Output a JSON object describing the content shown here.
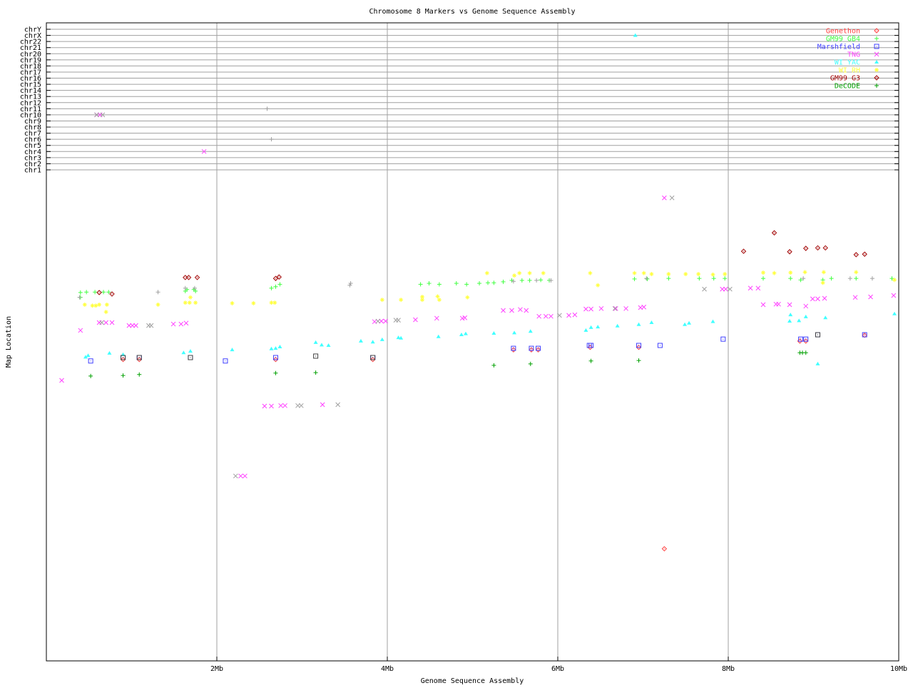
{
  "chart_data": {
    "type": "scatter",
    "title": "Chromosome 8 Markers vs Genome Sequence Assembly",
    "xlabel": "Genome Sequence Assembly",
    "ylabel": "Map Location",
    "xlim": [
      0,
      10
    ],
    "x_ticks": [
      {
        "v": 2,
        "label": "2Mb"
      },
      {
        "v": 4,
        "label": "4Mb"
      },
      {
        "v": 6,
        "label": "6Mb"
      },
      {
        "v": 8,
        "label": "8Mb"
      },
      {
        "v": 10,
        "label": "10Mb"
      }
    ],
    "ylim": [
      0,
      100
    ],
    "chr_ticks": [
      "chr1",
      "chr2",
      "chr3",
      "chr4",
      "chr5",
      "chr6",
      "chr7",
      "chr8",
      "chr9",
      "chr10",
      "chr11",
      "chr12",
      "chr13",
      "chr14",
      "chr15",
      "chr16",
      "chr17",
      "chr18",
      "chr19",
      "chr20",
      "chr21",
      "chr22",
      "chrX",
      "chrY"
    ],
    "grid": {
      "x": true,
      "chr_rows": true
    },
    "legend_placement": "top-right",
    "series": [
      {
        "name": "Genethon",
        "color": "#ff4040",
        "marker": "diamond",
        "points": [
          [
            0.9,
            62.1
          ],
          [
            1.09,
            62.1
          ],
          [
            2.69,
            62.1
          ],
          [
            3.83,
            62.1
          ],
          [
            5.48,
            64.1
          ],
          [
            5.69,
            64.1
          ],
          [
            5.77,
            64.1
          ],
          [
            6.38,
            64.6
          ],
          [
            6.95,
            64.6
          ],
          [
            8.84,
            65.9
          ],
          [
            8.91,
            65.9
          ],
          [
            9.6,
            67.1
          ],
          [
            7.25,
            23.1
          ]
        ]
      },
      {
        "name": "GM99 GB4",
        "color": "#40ff40",
        "marker": "plus",
        "points": [
          [
            0.4,
            75.9
          ],
          [
            0.4,
            74.9
          ],
          [
            0.47,
            76.0
          ],
          [
            0.57,
            76.0
          ],
          [
            0.67,
            76.0
          ],
          [
            0.73,
            76.0
          ],
          [
            1.65,
            76.5
          ],
          [
            1.73,
            76.5
          ],
          [
            1.63,
            76.2
          ],
          [
            1.75,
            76.2
          ],
          [
            2.64,
            76.8
          ],
          [
            2.69,
            77.1
          ],
          [
            2.74,
            77.6
          ],
          [
            4.39,
            77.6
          ],
          [
            4.49,
            77.8
          ],
          [
            4.61,
            77.6
          ],
          [
            4.81,
            77.8
          ],
          [
            4.93,
            77.6
          ],
          [
            5.08,
            77.8
          ],
          [
            5.18,
            77.9
          ],
          [
            5.25,
            77.9
          ],
          [
            5.36,
            78.1
          ],
          [
            5.46,
            78.4
          ],
          [
            5.58,
            78.4
          ],
          [
            5.67,
            78.4
          ],
          [
            5.8,
            78.5
          ],
          [
            5.9,
            78.4
          ],
          [
            6.9,
            78.7
          ],
          [
            7.05,
            78.7
          ],
          [
            7.3,
            78.8
          ],
          [
            7.66,
            78.8
          ],
          [
            7.83,
            78.8
          ],
          [
            7.96,
            78.8
          ],
          [
            8.41,
            78.8
          ],
          [
            8.73,
            78.8
          ],
          [
            8.85,
            78.5
          ],
          [
            9.11,
            78.5
          ],
          [
            9.21,
            78.8
          ],
          [
            9.5,
            78.8
          ],
          [
            9.92,
            78.8
          ]
        ]
      },
      {
        "name": "Marshfield",
        "color": "#4040ff",
        "marker": "box",
        "points": [
          [
            0.52,
            61.8
          ],
          [
            0.9,
            62.5
          ],
          [
            1.09,
            62.5
          ],
          [
            1.69,
            62.5
          ],
          [
            2.1,
            61.8
          ],
          [
            2.69,
            62.5
          ],
          [
            3.83,
            62.5
          ],
          [
            5.48,
            64.4
          ],
          [
            5.69,
            64.4
          ],
          [
            5.77,
            64.4
          ],
          [
            6.37,
            65.0
          ],
          [
            6.39,
            65.0
          ],
          [
            6.95,
            65.0
          ],
          [
            7.2,
            65.0
          ],
          [
            7.94,
            66.3
          ],
          [
            8.85,
            66.3
          ],
          [
            8.91,
            66.3
          ],
          [
            9.05,
            67.2
          ],
          [
            9.6,
            67.2
          ]
        ]
      },
      {
        "name": "TNG",
        "color": "#ff40ff",
        "marker": "x",
        "points": [
          [
            0.18,
            57.8
          ],
          [
            0.4,
            68.1
          ],
          [
            0.62,
            69.7
          ],
          [
            0.7,
            69.7
          ],
          [
            0.77,
            69.7
          ],
          [
            0.97,
            69.1
          ],
          [
            1.01,
            69.1
          ],
          [
            1.05,
            69.1
          ],
          [
            1.49,
            69.4
          ],
          [
            1.58,
            69.4
          ],
          [
            1.64,
            69.6
          ],
          [
            1.85,
            "chr4"
          ],
          [
            0.59,
            "chr10"
          ],
          [
            0.63,
            "chr10"
          ],
          [
            2.56,
            52.5
          ],
          [
            2.64,
            52.5
          ],
          [
            2.75,
            52.6
          ],
          [
            2.8,
            52.6
          ],
          [
            3.24,
            52.8
          ],
          [
            2.28,
            38.1
          ],
          [
            2.33,
            38.1
          ],
          [
            3.85,
            69.9
          ],
          [
            3.93,
            70.0
          ],
          [
            3.98,
            70.0
          ],
          [
            4.33,
            70.3
          ],
          [
            4.58,
            70.6
          ],
          [
            4.88,
            70.6
          ],
          [
            4.91,
            70.7
          ],
          [
            5.36,
            72.2
          ],
          [
            5.46,
            72.2
          ],
          [
            5.56,
            72.4
          ],
          [
            5.63,
            72.2
          ],
          [
            5.78,
            71.0
          ],
          [
            5.86,
            71.0
          ],
          [
            5.92,
            71.0
          ],
          [
            6.13,
            71.2
          ],
          [
            6.2,
            71.3
          ],
          [
            6.33,
            72.5
          ],
          [
            6.39,
            72.5
          ],
          [
            6.51,
            72.6
          ],
          [
            6.68,
            72.6
          ],
          [
            6.8,
            72.6
          ],
          [
            6.97,
            72.8
          ],
          [
            7.01,
            72.9
          ],
          [
            7.25,
            95.4
          ],
          [
            7.93,
            76.6
          ],
          [
            7.97,
            76.6
          ],
          [
            8.26,
            76.8
          ],
          [
            8.35,
            76.8
          ],
          [
            8.41,
            73.4
          ],
          [
            8.56,
            73.5
          ],
          [
            8.59,
            73.5
          ],
          [
            8.72,
            73.4
          ],
          [
            8.91,
            73.1
          ],
          [
            8.99,
            74.6
          ],
          [
            9.05,
            74.6
          ],
          [
            9.13,
            74.7
          ],
          [
            9.49,
            74.9
          ],
          [
            9.67,
            75.0
          ],
          [
            9.94,
            75.3
          ]
        ]
      },
      {
        "name": "WI YAC",
        "color": "#40ffff",
        "marker": "triangle",
        "points": [
          [
            0.46,
            62.6
          ],
          [
            0.49,
            62.9
          ],
          [
            0.74,
            63.4
          ],
          [
            0.9,
            63.1
          ],
          [
            1.61,
            63.5
          ],
          [
            1.69,
            63.8
          ],
          [
            2.18,
            64.1
          ],
          [
            2.64,
            64.3
          ],
          [
            2.69,
            64.4
          ],
          [
            2.74,
            64.7
          ],
          [
            3.16,
            65.6
          ],
          [
            3.23,
            65.1
          ],
          [
            3.31,
            65.0
          ],
          [
            3.69,
            65.9
          ],
          [
            3.83,
            65.7
          ],
          [
            3.94,
            66.2
          ],
          [
            4.13,
            66.6
          ],
          [
            4.16,
            66.5
          ],
          [
            4.6,
            66.8
          ],
          [
            4.87,
            67.2
          ],
          [
            4.92,
            67.4
          ],
          [
            5.25,
            67.5
          ],
          [
            5.49,
            67.6
          ],
          [
            5.68,
            67.9
          ],
          [
            6.33,
            68.1
          ],
          [
            6.39,
            68.7
          ],
          [
            6.47,
            68.8
          ],
          [
            6.7,
            69.0
          ],
          [
            6.95,
            69.3
          ],
          [
            7.1,
            69.7
          ],
          [
            7.49,
            69.3
          ],
          [
            7.54,
            69.6
          ],
          [
            7.82,
            69.9
          ],
          [
            6.91,
            "chrX"
          ],
          [
            8.72,
            70.0
          ],
          [
            8.73,
            71.3
          ],
          [
            8.83,
            70.1
          ],
          [
            8.91,
            70.9
          ],
          [
            9.05,
            61.2
          ],
          [
            9.14,
            70.7
          ],
          [
            9.95,
            71.5
          ]
        ]
      },
      {
        "name": "WI RH",
        "color": "#ffff40",
        "marker": "star",
        "points": [
          [
            0.45,
            73.4
          ],
          [
            0.54,
            73.2
          ],
          [
            0.58,
            73.2
          ],
          [
            0.62,
            73.4
          ],
          [
            0.71,
            73.4
          ],
          [
            0.7,
            71.9
          ],
          [
            1.31,
            73.4
          ],
          [
            1.63,
            73.8
          ],
          [
            1.68,
            73.8
          ],
          [
            1.75,
            73.8
          ],
          [
            1.69,
            74.9
          ],
          [
            2.18,
            73.7
          ],
          [
            2.43,
            73.7
          ],
          [
            2.64,
            73.8
          ],
          [
            2.68,
            73.8
          ],
          [
            3.94,
            74.4
          ],
          [
            4.16,
            74.4
          ],
          [
            4.41,
            75.0
          ],
          [
            4.41,
            74.4
          ],
          [
            4.61,
            74.4
          ],
          [
            4.59,
            75.1
          ],
          [
            4.94,
            74.9
          ],
          [
            5.17,
            79.9
          ],
          [
            5.49,
            79.4
          ],
          [
            5.55,
            79.9
          ],
          [
            5.67,
            79.9
          ],
          [
            5.83,
            79.9
          ],
          [
            6.38,
            79.9
          ],
          [
            6.47,
            77.4
          ],
          [
            6.9,
            79.9
          ],
          [
            7.01,
            79.9
          ],
          [
            7.1,
            79.7
          ],
          [
            7.3,
            79.7
          ],
          [
            7.5,
            79.7
          ],
          [
            7.65,
            79.7
          ],
          [
            7.82,
            79.6
          ],
          [
            7.96,
            79.7
          ],
          [
            8.41,
            80.0
          ],
          [
            8.54,
            79.9
          ],
          [
            8.73,
            80.0
          ],
          [
            8.9,
            80.1
          ],
          [
            9.12,
            80.1
          ],
          [
            9.5,
            80.1
          ],
          [
            9.95,
            78.5
          ],
          [
            9.11,
            77.9
          ]
        ]
      },
      {
        "name": "GM99 G3",
        "color": "#a00000",
        "marker": "diamond",
        "points": [
          [
            0.62,
            75.9
          ],
          [
            0.77,
            75.6
          ],
          [
            1.63,
            79.0
          ],
          [
            1.67,
            79.0
          ],
          [
            1.77,
            79.0
          ],
          [
            2.69,
            78.8
          ],
          [
            2.73,
            79.1
          ],
          [
            8.54,
            88.2
          ],
          [
            8.18,
            84.4
          ],
          [
            8.72,
            84.3
          ],
          [
            8.91,
            85.0
          ],
          [
            9.05,
            85.1
          ],
          [
            9.14,
            85.1
          ],
          [
            9.5,
            83.7
          ],
          [
            9.6,
            83.8
          ]
        ]
      },
      {
        "name": "DeCODE",
        "color": "#00a000",
        "marker": "plus",
        "points": [
          [
            0.52,
            58.7
          ],
          [
            0.9,
            58.8
          ],
          [
            1.09,
            59.0
          ],
          [
            2.69,
            59.3
          ],
          [
            3.16,
            59.4
          ],
          [
            5.25,
            60.9
          ],
          [
            5.68,
            61.2
          ],
          [
            6.39,
            61.8
          ],
          [
            6.95,
            61.9
          ],
          [
            8.84,
            63.5
          ],
          [
            8.87,
            63.5
          ],
          [
            8.91,
            63.5
          ]
        ]
      },
      {
        "color": "#a0a0a0",
        "marker": "plus",
        "points": [
          [
            2.59,
            "chr11"
          ],
          [
            2.64,
            "chr6"
          ],
          [
            0.39,
            74.9
          ],
          [
            1.31,
            76.0
          ],
          [
            1.63,
            76.8
          ],
          [
            1.74,
            76.8
          ],
          [
            3.56,
            77.4
          ],
          [
            3.57,
            77.8
          ],
          [
            5.48,
            78.2
          ],
          [
            5.75,
            78.4
          ],
          [
            5.92,
            78.4
          ],
          [
            7.04,
            78.8
          ],
          [
            8.88,
            78.8
          ],
          [
            9.43,
            78.8
          ],
          [
            9.69,
            78.8
          ]
        ]
      },
      {
        "color": "#a0a0a0",
        "marker": "x",
        "points": [
          [
            0.59,
            "chr10"
          ],
          [
            0.66,
            "chr10"
          ],
          [
            0.65,
            69.7
          ],
          [
            1.2,
            69.1
          ],
          [
            1.23,
            69.1
          ],
          [
            2.22,
            38.1
          ],
          [
            2.95,
            52.6
          ],
          [
            2.99,
            52.6
          ],
          [
            3.42,
            52.8
          ],
          [
            3.89,
            70.0
          ],
          [
            4.1,
            70.2
          ],
          [
            4.13,
            70.2
          ],
          [
            6.02,
            71.2
          ],
          [
            6.67,
            72.6
          ],
          [
            7.34,
            95.4
          ],
          [
            7.72,
            76.6
          ],
          [
            8.02,
            76.6
          ]
        ]
      },
      {
        "color": "#404040",
        "marker": "box",
        "points": [
          [
            0.9,
            62.5
          ],
          [
            1.09,
            62.5
          ],
          [
            1.69,
            62.5
          ],
          [
            3.16,
            62.8
          ],
          [
            3.83,
            62.5
          ],
          [
            9.05,
            67.2
          ]
        ]
      }
    ]
  }
}
